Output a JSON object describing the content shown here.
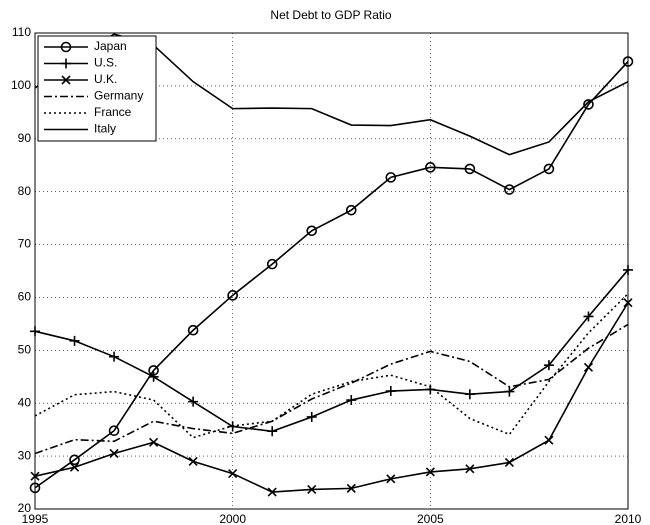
{
  "chart_data": {
    "type": "line",
    "title": "Net Debt to GDP Ratio",
    "x": [
      1995,
      1996,
      1997,
      1998,
      1999,
      2000,
      2001,
      2002,
      2003,
      2004,
      2005,
      2006,
      2007,
      2008,
      2009,
      2010
    ],
    "xlim": [
      1995,
      2010
    ],
    "xticks": [
      1995,
      2000,
      2005,
      2010
    ],
    "ylim": [
      20,
      110
    ],
    "yticks": [
      20,
      30,
      40,
      50,
      60,
      70,
      80,
      90,
      100,
      110
    ],
    "grid": true,
    "legend": "upper left",
    "series": [
      {
        "name": "Japan",
        "color": "#000000",
        "marker": "o",
        "dash": "solid",
        "values": [
          24,
          29.3,
          34.8,
          46.2,
          53.8,
          60.4,
          66.3,
          72.6,
          76.5,
          82.7,
          84.6,
          84.3,
          80.4,
          84.3,
          96.5,
          104.6
        ]
      },
      {
        "name": "U.S.",
        "color": "#000000",
        "marker": "+",
        "dash": "solid",
        "values": [
          53.6,
          51.8,
          48.8,
          45,
          40.3,
          35.6,
          34.7,
          37.4,
          40.6,
          42.3,
          42.6,
          41.7,
          42.2,
          47.2,
          56.4,
          65.2
        ]
      },
      {
        "name": "U.K.",
        "color": "#000000",
        "marker": "x",
        "dash": "solid",
        "values": [
          26.2,
          27.9,
          30.5,
          32.6,
          29,
          26.7,
          23.2,
          23.7,
          23.9,
          25.7,
          27,
          27.6,
          28.8,
          33,
          46.8,
          59
        ]
      },
      {
        "name": "Germany",
        "color": "#000000",
        "marker": "none",
        "dash": "dashdot",
        "values": [
          30.5,
          33.1,
          32.8,
          36.6,
          35.2,
          34.3,
          36.6,
          40.8,
          43.8,
          47.4,
          49.8,
          47.9,
          43.1,
          44.5,
          50.4,
          54.9
        ]
      },
      {
        "name": "France",
        "color": "#000000",
        "marker": "none",
        "dash": "dotted",
        "values": [
          37.6,
          41.6,
          42.2,
          40.6,
          33.5,
          35.7,
          36.6,
          41.7,
          44.1,
          45.3,
          43.1,
          37.1,
          34.1,
          44.1,
          53.3,
          60.7
        ]
      },
      {
        "name": "Italy",
        "color": "#000000",
        "marker": "none",
        "dash": "solid",
        "values": [
          99.6,
          105,
          109.8,
          107.7,
          100.8,
          95.7,
          95.8,
          95.7,
          92.6,
          92.5,
          93.6,
          90.5,
          87,
          89.4,
          97,
          100.8
        ]
      }
    ]
  }
}
